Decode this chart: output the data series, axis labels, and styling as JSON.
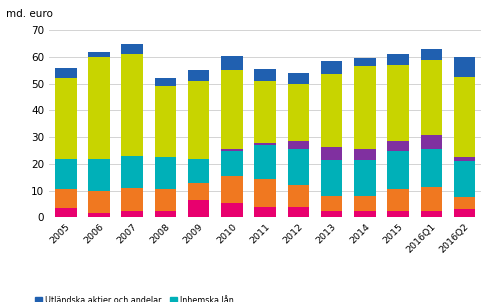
{
  "categories": [
    "2005",
    "2006",
    "2007",
    "2008",
    "2009",
    "2010",
    "2011",
    "2012",
    "2013",
    "2014",
    "2015",
    "2016Q1",
    "2016Q2"
  ],
  "series": {
    "Övriga medel": [
      3.5,
      1.5,
      2.5,
      2.5,
      6.5,
      5.5,
      4.0,
      4.0,
      2.5,
      2.5,
      2.5,
      2.5,
      3.0
    ],
    "Sedlar, mynt och inlåning": [
      7.0,
      8.5,
      8.5,
      8.0,
      6.5,
      10.0,
      10.5,
      8.0,
      5.5,
      5.5,
      8.0,
      9.0,
      4.5
    ],
    "Inhemska lån": [
      11.5,
      12.0,
      12.0,
      12.0,
      9.0,
      9.5,
      12.5,
      13.5,
      13.5,
      13.5,
      14.5,
      14.0,
      13.5
    ],
    "Utländska lån": [
      0.0,
      0.0,
      0.0,
      0.0,
      0.0,
      0.5,
      1.0,
      3.0,
      5.0,
      4.0,
      3.5,
      5.5,
      1.5
    ],
    "Inhemska aktier och andelar": [
      30.0,
      38.0,
      38.0,
      26.5,
      29.0,
      29.5,
      23.0,
      21.5,
      27.0,
      31.0,
      28.5,
      28.0,
      30.0
    ],
    "Utländska aktier och andelar": [
      4.0,
      2.0,
      4.0,
      3.0,
      4.0,
      5.5,
      4.5,
      4.0,
      5.0,
      3.0,
      4.0,
      4.0,
      7.5
    ]
  },
  "colors": {
    "Övriga medel": "#e8006e",
    "Sedlar, mynt och inlåning": "#f07820",
    "Inhemska lån": "#00b0b8",
    "Utländska lån": "#8030a0",
    "Inhemska aktier och andelar": "#c8d400",
    "Utländska aktier och andelar": "#2060b0"
  },
  "ylabel": "md. euro",
  "ylim": [
    0,
    70
  ],
  "yticks": [
    0,
    10,
    20,
    30,
    40,
    50,
    60,
    70
  ],
  "background_color": "#ffffff",
  "grid_color": "#cccccc"
}
